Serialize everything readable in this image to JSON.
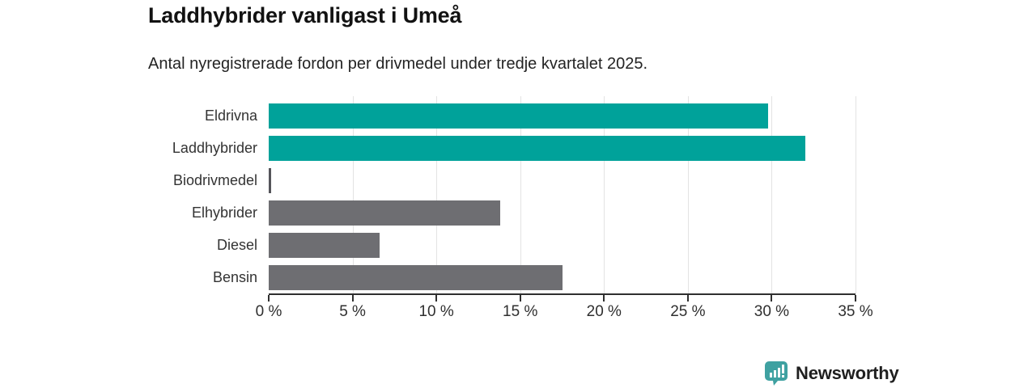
{
  "header": {
    "title": "Laddhybrider vanligast i Umeå",
    "subtitle": "Antal nyregistrerade fordon per drivmedel under tredje kvartalet 2025."
  },
  "chart_data": {
    "type": "bar",
    "orientation": "horizontal",
    "title": "Laddhybrider vanligast i Umeå",
    "subtitle": "Antal nyregistrerade fordon per drivmedel under tredje kvartalet 2025.",
    "categories": [
      "Eldrivna",
      "Laddhybrider",
      "Biodrivmedel",
      "Elhybrider",
      "Diesel",
      "Bensin"
    ],
    "values": [
      29.8,
      32.0,
      0.15,
      13.8,
      6.6,
      17.5
    ],
    "unit": "%",
    "bar_colors": [
      "#00A29A",
      "#00A29A",
      "#55555A",
      "#6E6E72",
      "#6E6E72",
      "#6E6E72"
    ],
    "xlim": [
      0,
      35
    ],
    "x_tick_step": 5,
    "x_tick_labels": [
      "0 %",
      "5 %",
      "10 %",
      "15 %",
      "20 %",
      "25 %",
      "30 %",
      "35 %"
    ],
    "grid": true,
    "legend": false
  },
  "colors": {
    "highlight": "#00A29A",
    "default_bar": "#6E6E72",
    "axis": "#2F2F2F",
    "gridline": "#E3E3E3"
  },
  "branding": {
    "name": "Newsworthy",
    "icon": "newsworthy-bubble-chart-icon",
    "icon_color": "#3FA1A1",
    "text_color": "#38989B"
  }
}
